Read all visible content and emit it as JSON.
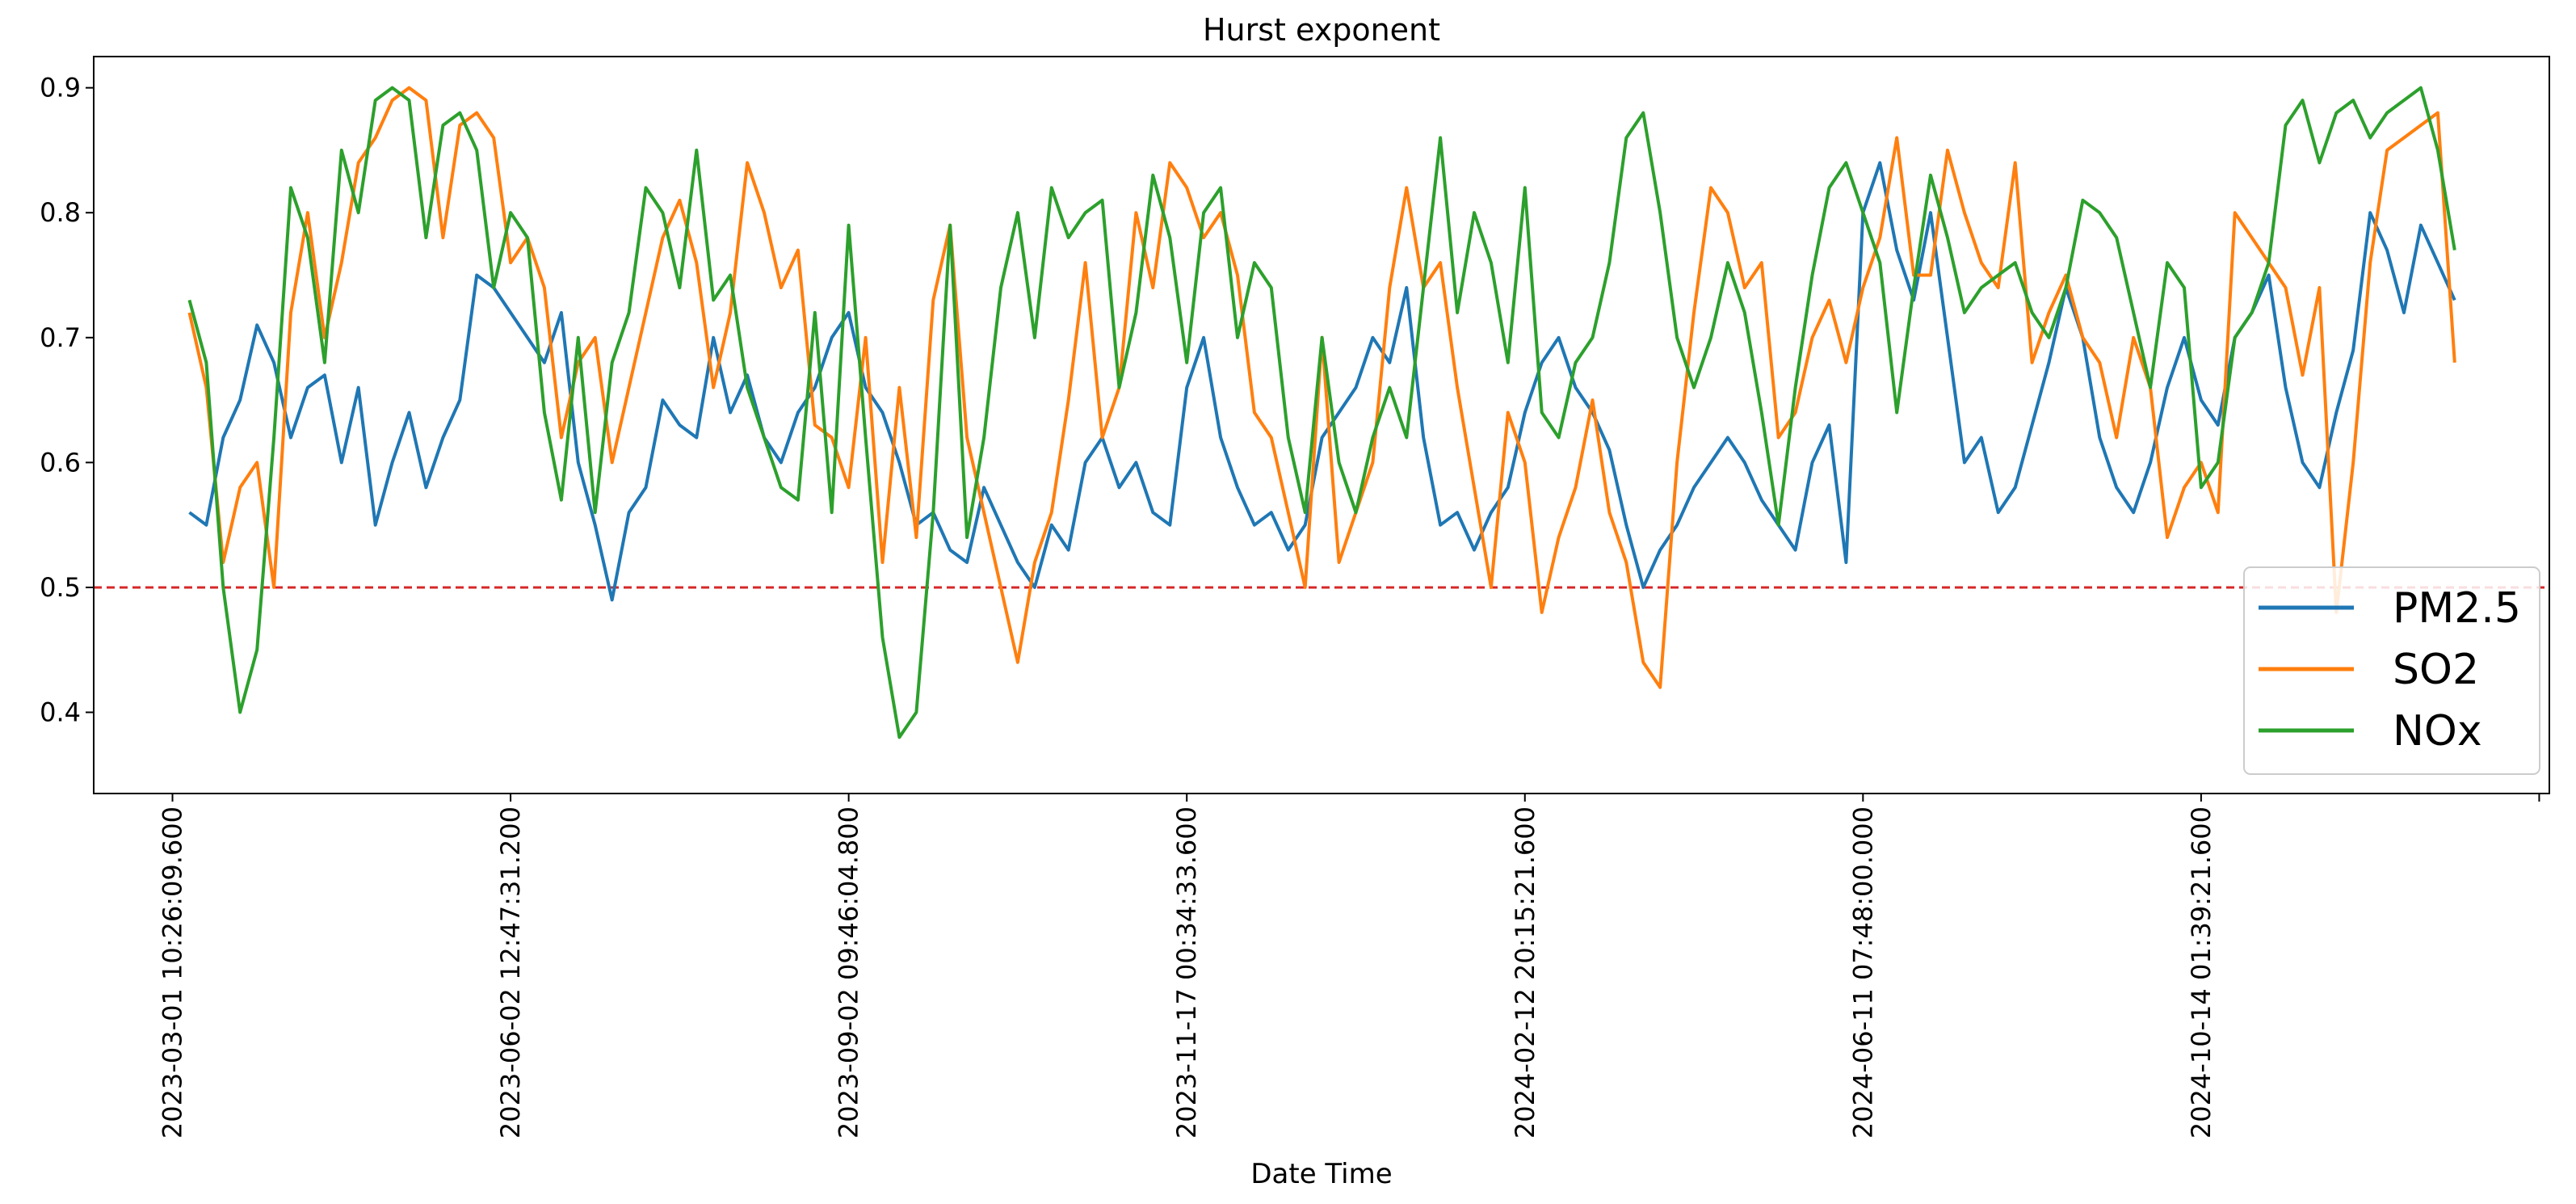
{
  "chart_data": {
    "type": "line",
    "title": "Hurst exponent",
    "xlabel": "Date Time",
    "ylabel": "",
    "ylim": [
      0.335,
      0.925
    ],
    "xlim": [
      -0.233,
      7.03
    ],
    "reference_line": {
      "y": 0.5,
      "color": "#d62728",
      "style": "dashed"
    },
    "yticks": [
      0.4,
      0.5,
      0.6,
      0.7,
      0.8,
      0.9
    ],
    "ytick_labels": [
      "0.4",
      "0.5",
      "0.6",
      "0.7",
      "0.8",
      "0.9"
    ],
    "xticks": [
      0,
      1,
      2,
      3,
      4,
      5,
      6,
      7
    ],
    "xtick_labels": [
      "2023-03-01 10:26:09.600",
      "2023-06-02 12:47:31.200",
      "2023-09-02 09:46:04.800",
      "2023-11-17 00:34:33.600",
      "2024-02-12 20:15:21.600",
      "2024-06-11 07:48:00.000",
      "2024-10-14 01:39:21.600",
      ""
    ],
    "legend": {
      "position": "lower-right"
    },
    "series": [
      {
        "name": "PM2.5",
        "color": "#1f77b4",
        "x": [
          0.05,
          0.1,
          0.15,
          0.2,
          0.25,
          0.3,
          0.35,
          0.4,
          0.45,
          0.5,
          0.55,
          0.6,
          0.65,
          0.7,
          0.75,
          0.8,
          0.85,
          0.9,
          0.95,
          1.0,
          1.05,
          1.1,
          1.15,
          1.2,
          1.25,
          1.3,
          1.35,
          1.4,
          1.45,
          1.5,
          1.55,
          1.6,
          1.65,
          1.7,
          1.75,
          1.8,
          1.85,
          1.9,
          1.95,
          2.0,
          2.05,
          2.1,
          2.15,
          2.2,
          2.25,
          2.3,
          2.35,
          2.4,
          2.45,
          2.5,
          2.55,
          2.6,
          2.65,
          2.7,
          2.75,
          2.8,
          2.85,
          2.9,
          2.95,
          3.0,
          3.05,
          3.1,
          3.15,
          3.2,
          3.25,
          3.3,
          3.35,
          3.4,
          3.45,
          3.5,
          3.55,
          3.6,
          3.65,
          3.7,
          3.75,
          3.8,
          3.85,
          3.9,
          3.95,
          4.0,
          4.05,
          4.1,
          4.15,
          4.2,
          4.25,
          4.3,
          4.35,
          4.4,
          4.45,
          4.5,
          4.55,
          4.6,
          4.65,
          4.7,
          4.75,
          4.8,
          4.85,
          4.9,
          4.95,
          5.0,
          5.05,
          5.1,
          5.15,
          5.2,
          5.25,
          5.3,
          5.35,
          5.4,
          5.45,
          5.5,
          5.55,
          5.6,
          5.65,
          5.7,
          5.75,
          5.8,
          5.85,
          5.9,
          5.95,
          6.0,
          6.05,
          6.1,
          6.15,
          6.2,
          6.25,
          6.3,
          6.35,
          6.4,
          6.45,
          6.5,
          6.55,
          6.6,
          6.65,
          6.7,
          6.75
        ],
        "values": [
          0.56,
          0.55,
          0.62,
          0.65,
          0.71,
          0.68,
          0.62,
          0.66,
          0.67,
          0.6,
          0.66,
          0.55,
          0.6,
          0.64,
          0.58,
          0.62,
          0.65,
          0.75,
          0.74,
          0.72,
          0.7,
          0.68,
          0.72,
          0.6,
          0.55,
          0.49,
          0.56,
          0.58,
          0.65,
          0.63,
          0.62,
          0.7,
          0.64,
          0.67,
          0.62,
          0.6,
          0.64,
          0.66,
          0.7,
          0.72,
          0.66,
          0.64,
          0.6,
          0.55,
          0.56,
          0.53,
          0.52,
          0.58,
          0.55,
          0.52,
          0.5,
          0.55,
          0.53,
          0.6,
          0.62,
          0.58,
          0.6,
          0.56,
          0.55,
          0.66,
          0.7,
          0.62,
          0.58,
          0.55,
          0.56,
          0.53,
          0.55,
          0.62,
          0.64,
          0.66,
          0.7,
          0.68,
          0.74,
          0.62,
          0.55,
          0.56,
          0.53,
          0.56,
          0.58,
          0.64,
          0.68,
          0.7,
          0.66,
          0.64,
          0.61,
          0.55,
          0.5,
          0.53,
          0.55,
          0.58,
          0.6,
          0.62,
          0.6,
          0.57,
          0.55,
          0.53,
          0.6,
          0.63,
          0.52,
          0.8,
          0.84,
          0.77,
          0.73,
          0.8,
          0.7,
          0.6,
          0.62,
          0.56,
          0.58,
          0.63,
          0.68,
          0.74,
          0.7,
          0.62,
          0.58,
          0.56,
          0.6,
          0.66,
          0.7,
          0.65,
          0.63,
          0.7,
          0.72,
          0.75,
          0.66,
          0.6,
          0.58,
          0.64,
          0.69,
          0.8,
          0.77,
          0.72,
          0.79,
          0.76,
          0.73
        ]
      },
      {
        "name": "SO2",
        "color": "#ff7f0e",
        "x": [
          0.05,
          0.1,
          0.15,
          0.2,
          0.25,
          0.3,
          0.35,
          0.4,
          0.45,
          0.5,
          0.55,
          0.6,
          0.65,
          0.7,
          0.75,
          0.8,
          0.85,
          0.9,
          0.95,
          1.0,
          1.05,
          1.1,
          1.15,
          1.2,
          1.25,
          1.3,
          1.35,
          1.4,
          1.45,
          1.5,
          1.55,
          1.6,
          1.65,
          1.7,
          1.75,
          1.8,
          1.85,
          1.9,
          1.95,
          2.0,
          2.05,
          2.1,
          2.15,
          2.2,
          2.25,
          2.3,
          2.35,
          2.4,
          2.45,
          2.5,
          2.55,
          2.6,
          2.65,
          2.7,
          2.75,
          2.8,
          2.85,
          2.9,
          2.95,
          3.0,
          3.05,
          3.1,
          3.15,
          3.2,
          3.25,
          3.3,
          3.35,
          3.4,
          3.45,
          3.5,
          3.55,
          3.6,
          3.65,
          3.7,
          3.75,
          3.8,
          3.85,
          3.9,
          3.95,
          4.0,
          4.05,
          4.1,
          4.15,
          4.2,
          4.25,
          4.3,
          4.35,
          4.4,
          4.45,
          4.5,
          4.55,
          4.6,
          4.65,
          4.7,
          4.75,
          4.8,
          4.85,
          4.9,
          4.95,
          5.0,
          5.05,
          5.1,
          5.15,
          5.2,
          5.25,
          5.3,
          5.35,
          5.4,
          5.45,
          5.5,
          5.55,
          5.6,
          5.65,
          5.7,
          5.75,
          5.8,
          5.85,
          5.9,
          5.95,
          6.0,
          6.05,
          6.1,
          6.15,
          6.2,
          6.25,
          6.3,
          6.35,
          6.4,
          6.45,
          6.5,
          6.55,
          6.6,
          6.65,
          6.7,
          6.75
        ],
        "values": [
          0.72,
          0.66,
          0.52,
          0.58,
          0.6,
          0.5,
          0.72,
          0.8,
          0.7,
          0.76,
          0.84,
          0.86,
          0.89,
          0.9,
          0.89,
          0.78,
          0.87,
          0.88,
          0.86,
          0.76,
          0.78,
          0.74,
          0.62,
          0.68,
          0.7,
          0.6,
          0.66,
          0.72,
          0.78,
          0.81,
          0.76,
          0.66,
          0.72,
          0.84,
          0.8,
          0.74,
          0.77,
          0.63,
          0.62,
          0.58,
          0.7,
          0.52,
          0.66,
          0.54,
          0.73,
          0.79,
          0.62,
          0.56,
          0.5,
          0.44,
          0.52,
          0.56,
          0.65,
          0.76,
          0.62,
          0.66,
          0.8,
          0.74,
          0.84,
          0.82,
          0.78,
          0.8,
          0.75,
          0.64,
          0.62,
          0.56,
          0.5,
          0.7,
          0.52,
          0.56,
          0.6,
          0.74,
          0.82,
          0.74,
          0.76,
          0.66,
          0.58,
          0.5,
          0.64,
          0.6,
          0.48,
          0.54,
          0.58,
          0.65,
          0.56,
          0.52,
          0.44,
          0.42,
          0.6,
          0.72,
          0.82,
          0.8,
          0.74,
          0.76,
          0.62,
          0.64,
          0.7,
          0.73,
          0.68,
          0.74,
          0.78,
          0.86,
          0.75,
          0.75,
          0.85,
          0.8,
          0.76,
          0.74,
          0.84,
          0.68,
          0.72,
          0.75,
          0.7,
          0.68,
          0.62,
          0.7,
          0.66,
          0.54,
          0.58,
          0.6,
          0.56,
          0.8,
          0.78,
          0.76,
          0.74,
          0.67,
          0.74,
          0.48,
          0.6,
          0.76,
          0.85,
          0.86,
          0.87,
          0.88,
          0.68
        ]
      },
      {
        "name": "NOx",
        "color": "#2ca02c",
        "x": [
          0.05,
          0.1,
          0.15,
          0.2,
          0.25,
          0.3,
          0.35,
          0.4,
          0.45,
          0.5,
          0.55,
          0.6,
          0.65,
          0.7,
          0.75,
          0.8,
          0.85,
          0.9,
          0.95,
          1.0,
          1.05,
          1.1,
          1.15,
          1.2,
          1.25,
          1.3,
          1.35,
          1.4,
          1.45,
          1.5,
          1.55,
          1.6,
          1.65,
          1.7,
          1.75,
          1.8,
          1.85,
          1.9,
          1.95,
          2.0,
          2.05,
          2.1,
          2.15,
          2.2,
          2.25,
          2.3,
          2.35,
          2.4,
          2.45,
          2.5,
          2.55,
          2.6,
          2.65,
          2.7,
          2.75,
          2.8,
          2.85,
          2.9,
          2.95,
          3.0,
          3.05,
          3.1,
          3.15,
          3.2,
          3.25,
          3.3,
          3.35,
          3.4,
          3.45,
          3.5,
          3.55,
          3.6,
          3.65,
          3.7,
          3.75,
          3.8,
          3.85,
          3.9,
          3.95,
          4.0,
          4.05,
          4.1,
          4.15,
          4.2,
          4.25,
          4.3,
          4.35,
          4.4,
          4.45,
          4.5,
          4.55,
          4.6,
          4.65,
          4.7,
          4.75,
          4.8,
          4.85,
          4.9,
          4.95,
          5.0,
          5.05,
          5.1,
          5.15,
          5.2,
          5.25,
          5.3,
          5.35,
          5.4,
          5.45,
          5.5,
          5.55,
          5.6,
          5.65,
          5.7,
          5.75,
          5.8,
          5.85,
          5.9,
          5.95,
          6.0,
          6.05,
          6.1,
          6.15,
          6.2,
          6.25,
          6.3,
          6.35,
          6.4,
          6.45,
          6.5,
          6.55,
          6.6,
          6.65,
          6.7,
          6.75
        ],
        "values": [
          0.73,
          0.68,
          0.5,
          0.4,
          0.45,
          0.62,
          0.82,
          0.78,
          0.68,
          0.85,
          0.8,
          0.89,
          0.9,
          0.89,
          0.78,
          0.87,
          0.88,
          0.85,
          0.74,
          0.8,
          0.78,
          0.64,
          0.57,
          0.7,
          0.56,
          0.68,
          0.72,
          0.82,
          0.8,
          0.74,
          0.85,
          0.73,
          0.75,
          0.66,
          0.62,
          0.58,
          0.57,
          0.72,
          0.56,
          0.79,
          0.62,
          0.46,
          0.38,
          0.4,
          0.56,
          0.79,
          0.54,
          0.62,
          0.74,
          0.8,
          0.7,
          0.82,
          0.78,
          0.8,
          0.81,
          0.66,
          0.72,
          0.83,
          0.78,
          0.68,
          0.8,
          0.82,
          0.7,
          0.76,
          0.74,
          0.62,
          0.56,
          0.7,
          0.6,
          0.56,
          0.62,
          0.66,
          0.62,
          0.74,
          0.86,
          0.72,
          0.8,
          0.76,
          0.68,
          0.82,
          0.64,
          0.62,
          0.68,
          0.7,
          0.76,
          0.86,
          0.88,
          0.8,
          0.7,
          0.66,
          0.7,
          0.76,
          0.72,
          0.64,
          0.55,
          0.66,
          0.75,
          0.82,
          0.84,
          0.8,
          0.76,
          0.64,
          0.74,
          0.83,
          0.78,
          0.72,
          0.74,
          0.75,
          0.76,
          0.72,
          0.7,
          0.74,
          0.81,
          0.8,
          0.78,
          0.72,
          0.66,
          0.76,
          0.74,
          0.58,
          0.6,
          0.7,
          0.72,
          0.76,
          0.87,
          0.89,
          0.84,
          0.88,
          0.89,
          0.86,
          0.88,
          0.89,
          0.9,
          0.85,
          0.77
        ]
      }
    ]
  }
}
